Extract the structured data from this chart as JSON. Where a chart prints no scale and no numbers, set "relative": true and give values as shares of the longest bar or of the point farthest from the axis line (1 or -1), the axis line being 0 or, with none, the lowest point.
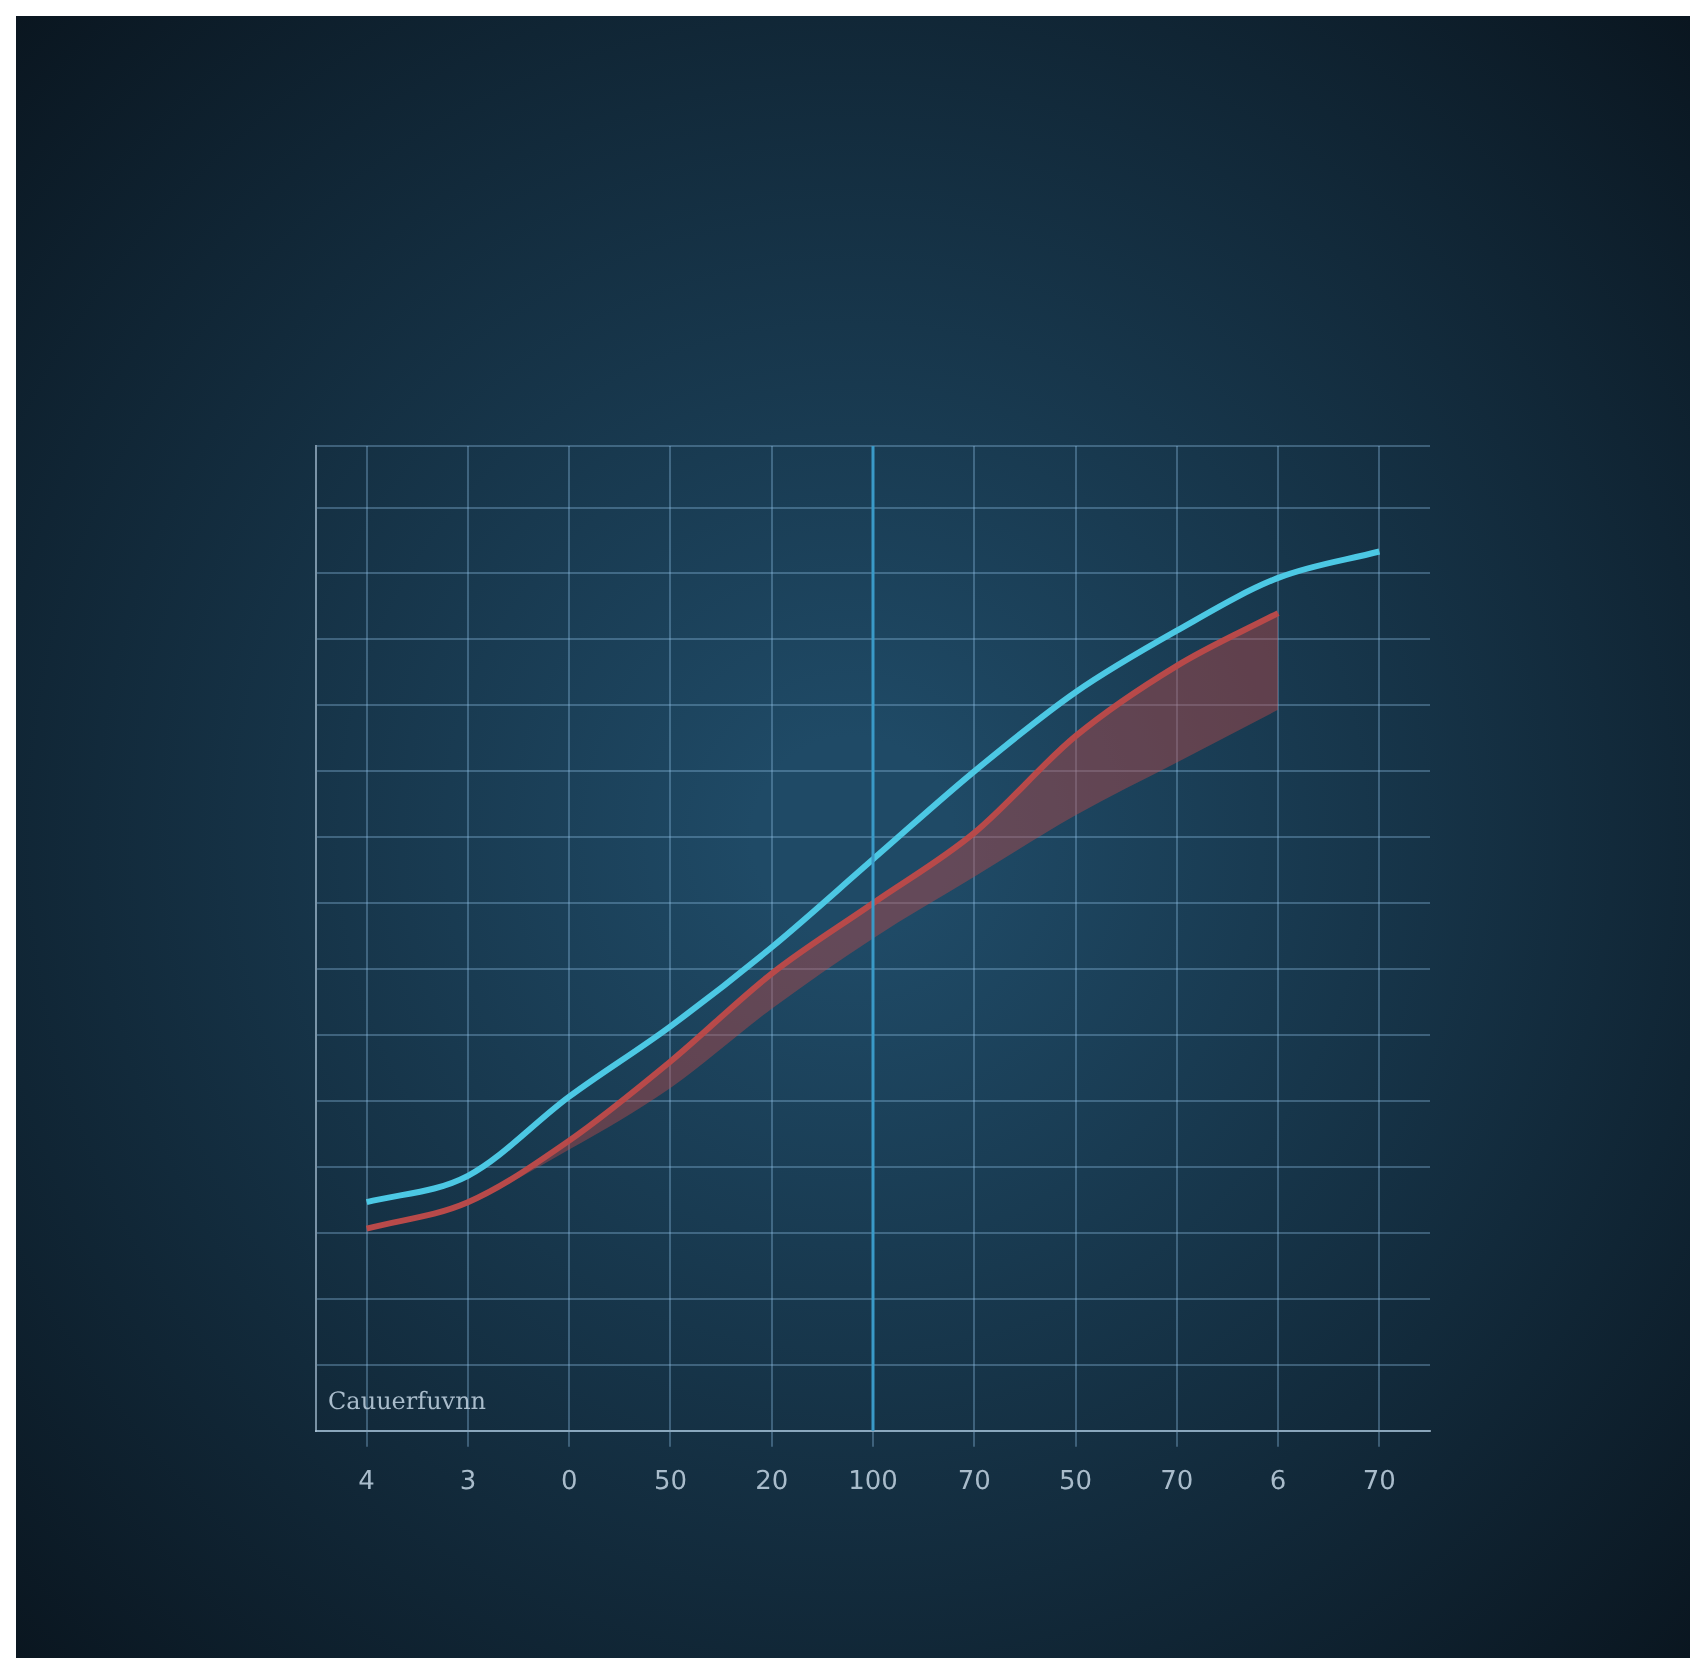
{
  "chart_data": {
    "type": "line",
    "categories": [
      "4",
      "3",
      "0",
      "50",
      "20",
      "100",
      "70",
      "50",
      "70",
      "6",
      "70"
    ],
    "relative": true,
    "grid": true,
    "line_style": "solid",
    "series": [
      {
        "color": "#4cc8e4",
        "values": [
          0.26,
          0.29,
          0.38,
          0.46,
          0.55,
          0.65,
          0.75,
          0.84,
          0.91,
          0.97,
          1
        ]
      },
      {
        "color": "#b84a4a",
        "values": [
          0.23,
          0.26,
          0.33,
          0.42,
          0.52,
          0.6,
          0.68,
          0.79,
          0.87,
          0.93,
          null
        ],
        "lower": [
          0.23,
          0.26,
          0.32,
          0.39,
          0.48,
          0.56,
          0.63,
          0.7,
          0.76,
          0.82,
          null
        ],
        "upper": [
          0.23,
          0.26,
          0.33,
          0.42,
          0.52,
          0.6,
          0.68,
          0.79,
          0.87,
          0.93,
          null
        ]
      }
    ],
    "ref_lines": [
      {
        "axis": "x",
        "value": "100",
        "color": "#3a9ac8"
      }
    ],
    "annotations": [
      "Cauuerfuvnn"
    ]
  }
}
